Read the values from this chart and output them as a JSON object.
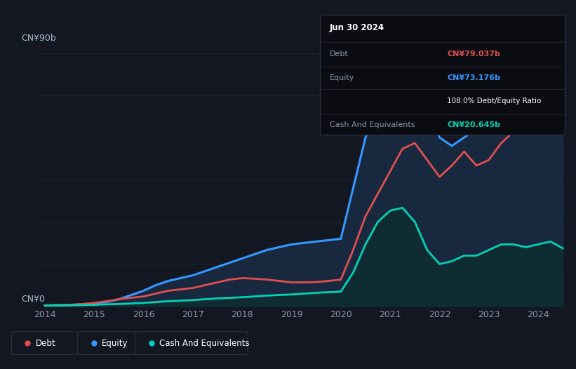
{
  "bg_color": "#131722",
  "plot_bg_color": "#0d1117",
  "grid_color": "#1e2636",
  "title_label": "CN¥90b",
  "zero_label": "CN¥0",
  "x_ticks": [
    2014,
    2015,
    2016,
    2017,
    2018,
    2019,
    2020,
    2021,
    2022,
    2023,
    2024
  ],
  "y_max": 90,
  "debt_color": "#e05050",
  "equity_color": "#3399ff",
  "cash_color": "#00d4b4",
  "equity_fill": "#1a2e4a",
  "debt_fill_over": "#5a1a1a",
  "cash_fill": "#0d2e2e",
  "years": [
    2014.0,
    2014.25,
    2014.5,
    2014.75,
    2015.0,
    2015.25,
    2015.5,
    2015.75,
    2016.0,
    2016.25,
    2016.5,
    2016.75,
    2017.0,
    2017.25,
    2017.5,
    2017.75,
    2018.0,
    2018.25,
    2018.5,
    2018.75,
    2019.0,
    2019.25,
    2019.5,
    2019.75,
    2020.0,
    2020.25,
    2020.5,
    2020.75,
    2021.0,
    2021.25,
    2021.5,
    2021.75,
    2022.0,
    2022.25,
    2022.5,
    2022.75,
    2023.0,
    2023.25,
    2023.5,
    2023.75,
    2024.0,
    2024.25,
    2024.5
  ],
  "debt": [
    0.3,
    0.4,
    0.5,
    0.8,
    1.2,
    1.8,
    2.5,
    3.0,
    3.5,
    4.5,
    5.5,
    6.0,
    6.5,
    7.5,
    8.5,
    9.5,
    10.0,
    9.8,
    9.5,
    9.0,
    8.5,
    8.5,
    8.6,
    9.0,
    9.5,
    20.0,
    32.0,
    40.0,
    48.0,
    56.0,
    58.0,
    52.0,
    46.0,
    50.0,
    55.0,
    50.0,
    52.0,
    58.0,
    62.0,
    66.0,
    68.0,
    75.0,
    79.0
  ],
  "equity": [
    0.3,
    0.4,
    0.5,
    0.7,
    1.0,
    1.5,
    2.5,
    4.0,
    5.5,
    7.5,
    9.0,
    10.0,
    11.0,
    12.5,
    14.0,
    15.5,
    17.0,
    18.5,
    20.0,
    21.0,
    22.0,
    22.5,
    23.0,
    23.5,
    24.0,
    42.0,
    60.0,
    70.0,
    72.0,
    75.0,
    78.0,
    72.0,
    60.0,
    57.0,
    60.0,
    63.0,
    68.0,
    72.0,
    70.0,
    68.0,
    66.0,
    69.0,
    73.0
  ],
  "cash": [
    0.2,
    0.3,
    0.3,
    0.4,
    0.5,
    0.7,
    0.8,
    1.0,
    1.2,
    1.5,
    1.8,
    2.0,
    2.2,
    2.5,
    2.8,
    3.0,
    3.2,
    3.5,
    3.8,
    4.0,
    4.2,
    4.5,
    4.8,
    5.0,
    5.2,
    12.0,
    22.0,
    30.0,
    34.0,
    35.0,
    30.0,
    20.0,
    15.0,
    16.0,
    18.0,
    18.0,
    20.0,
    22.0,
    22.0,
    21.0,
    22.0,
    23.0,
    20.6
  ],
  "tooltip_date": "Jun 30 2024",
  "tooltip_debt_label": "Debt",
  "tooltip_debt_value": "CN¥79.037b",
  "tooltip_equity_label": "Equity",
  "tooltip_equity_value": "CN¥73.176b",
  "tooltip_ratio": "108.0% Debt/Equity Ratio",
  "tooltip_cash_label": "Cash And Equivalents",
  "tooltip_cash_value": "CN¥20.645b",
  "legend_items": [
    "Debt",
    "Equity",
    "Cash And Equivalents"
  ]
}
